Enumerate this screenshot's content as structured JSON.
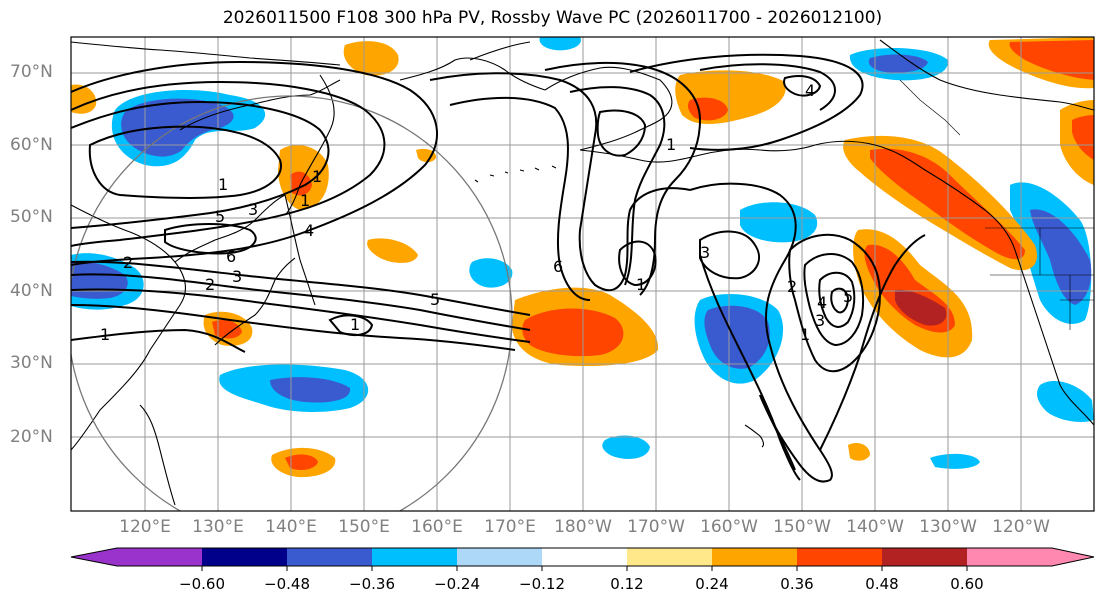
{
  "title": "2026011500 F108 300 hPa PV, Rossby Wave PC (2026011700 - 2026012100)",
  "map": {
    "lat_labels": [
      "70°N",
      "60°N",
      "50°N",
      "40°N",
      "30°N",
      "20°N"
    ],
    "lon_labels": [
      "120°E",
      "130°E",
      "140°E",
      "150°E",
      "160°E",
      "170°E",
      "180°W",
      "170°W",
      "160°W",
      "150°W",
      "140°W",
      "130°W",
      "120°W"
    ],
    "contour_labels": [
      "1",
      "2",
      "1",
      "3",
      "5",
      "6",
      "2",
      "3",
      "4",
      "1",
      "5",
      "6",
      "1",
      "3",
      "1",
      "4",
      "2",
      "4",
      "5",
      "1",
      "3",
      "1",
      "1"
    ],
    "colors": {
      "neg_060": "#9933cc",
      "neg_048": "#00008b",
      "neg_036": "#3a5bd0",
      "neg_024": "#00bfff",
      "neg_012": "#add8f7",
      "zero": "#ffffff",
      "pos_012": "#ffe88a",
      "pos_024": "#ffa500",
      "pos_036": "#ff4500",
      "pos_048": "#b22222",
      "pos_060": "#ff88b0"
    }
  },
  "colorbar": {
    "tick_labels": [
      "−0.60",
      "−0.48",
      "−0.36",
      "−0.24",
      "−0.12",
      "0.12",
      "0.24",
      "0.36",
      "0.48",
      "0.60"
    ]
  }
}
